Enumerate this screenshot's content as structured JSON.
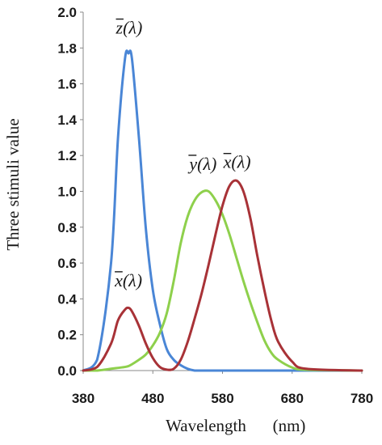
{
  "chart_data": {
    "type": "line",
    "title": "",
    "xlabel": "Wavelength",
    "xunit": "(nm)",
    "ylabel": "Three stimuli value",
    "xlim": [
      380,
      780
    ],
    "ylim": [
      0,
      2.0
    ],
    "x_ticks": [
      "380",
      "480",
      "580",
      "680",
      "780"
    ],
    "y_ticks": [
      "0.0",
      "0.2",
      "0.4",
      "0.6",
      "0.8",
      "1.0",
      "1.2",
      "1.4",
      "1.6",
      "1.8",
      "2.0"
    ],
    "grid": false,
    "legend": "none",
    "x": [
      380,
      400,
      420,
      430,
      440,
      445,
      450,
      460,
      470,
      480,
      490,
      500,
      510,
      520,
      530,
      540,
      550,
      560,
      570,
      580,
      590,
      600,
      610,
      620,
      630,
      640,
      650,
      660,
      680,
      700,
      780
    ],
    "series": [
      {
        "name_label": "z(λ)",
        "color": "#4a86d6",
        "values": [
          0.0,
          0.06,
          0.6,
          1.3,
          1.74,
          1.77,
          1.74,
          1.3,
          0.79,
          0.45,
          0.26,
          0.12,
          0.06,
          0.03,
          0.01,
          0.0,
          0.0,
          0.0,
          0.0,
          0.0,
          0.0,
          0.0,
          0.0,
          0.0,
          0.0,
          0.0,
          0.0,
          0.0,
          0.0,
          0.0,
          0.0
        ]
      },
      {
        "name_label": "y(λ)",
        "color": "#8ed04c",
        "values": [
          0.0,
          0.0,
          0.01,
          0.015,
          0.02,
          0.025,
          0.035,
          0.06,
          0.09,
          0.14,
          0.21,
          0.32,
          0.5,
          0.71,
          0.86,
          0.95,
          0.995,
          1.0,
          0.95,
          0.87,
          0.76,
          0.63,
          0.5,
          0.38,
          0.27,
          0.17,
          0.1,
          0.06,
          0.017,
          0.004,
          0.0
        ]
      },
      {
        "name_label": "x(λ)",
        "color": "#a83237",
        "values": [
          0.0,
          0.02,
          0.15,
          0.28,
          0.34,
          0.35,
          0.33,
          0.25,
          0.15,
          0.07,
          0.02,
          0.005,
          0.01,
          0.06,
          0.16,
          0.29,
          0.43,
          0.59,
          0.76,
          0.92,
          1.03,
          1.06,
          1.0,
          0.85,
          0.64,
          0.45,
          0.28,
          0.16,
          0.05,
          0.01,
          0.0
        ]
      }
    ],
    "curve_labels": [
      {
        "text": "z(λ)",
        "x": 446,
        "y": 1.88
      },
      {
        "text": "y(λ)",
        "x": 552,
        "y": 1.12
      },
      {
        "text": "x(λ)",
        "x": 601,
        "y": 1.13
      },
      {
        "text": "x(λ)",
        "x": 445,
        "y": 0.47
      }
    ]
  }
}
